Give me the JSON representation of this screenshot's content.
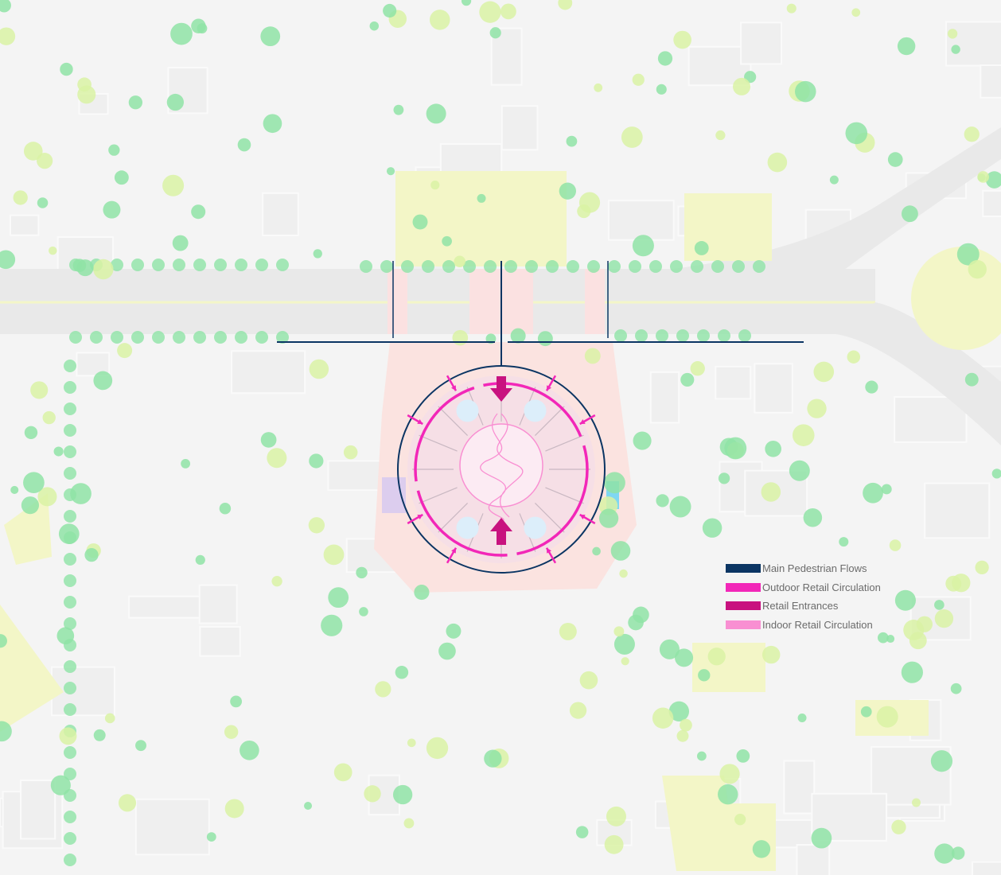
{
  "legend": {
    "items": [
      {
        "label": "Main Pedestrian Flows",
        "color": "#0b3563"
      },
      {
        "label": "Outdoor Retail Circulation",
        "color": "#f227b8"
      },
      {
        "label": "Retail Entrances",
        "color": "#c8127f"
      },
      {
        "label": "Indoor Retail Circulation",
        "color": "#f98fd2"
      }
    ]
  },
  "colors": {
    "background": "#f4f4f4",
    "road": "#e9e9e9",
    "road_line": "#f4f6c8",
    "park": "#f3f6c7",
    "tree_green": "#8fe3a6",
    "tree_lime": "#d9f2a5",
    "plaza": "#fbe1e1",
    "building_pink": "#f3dbe4"
  }
}
